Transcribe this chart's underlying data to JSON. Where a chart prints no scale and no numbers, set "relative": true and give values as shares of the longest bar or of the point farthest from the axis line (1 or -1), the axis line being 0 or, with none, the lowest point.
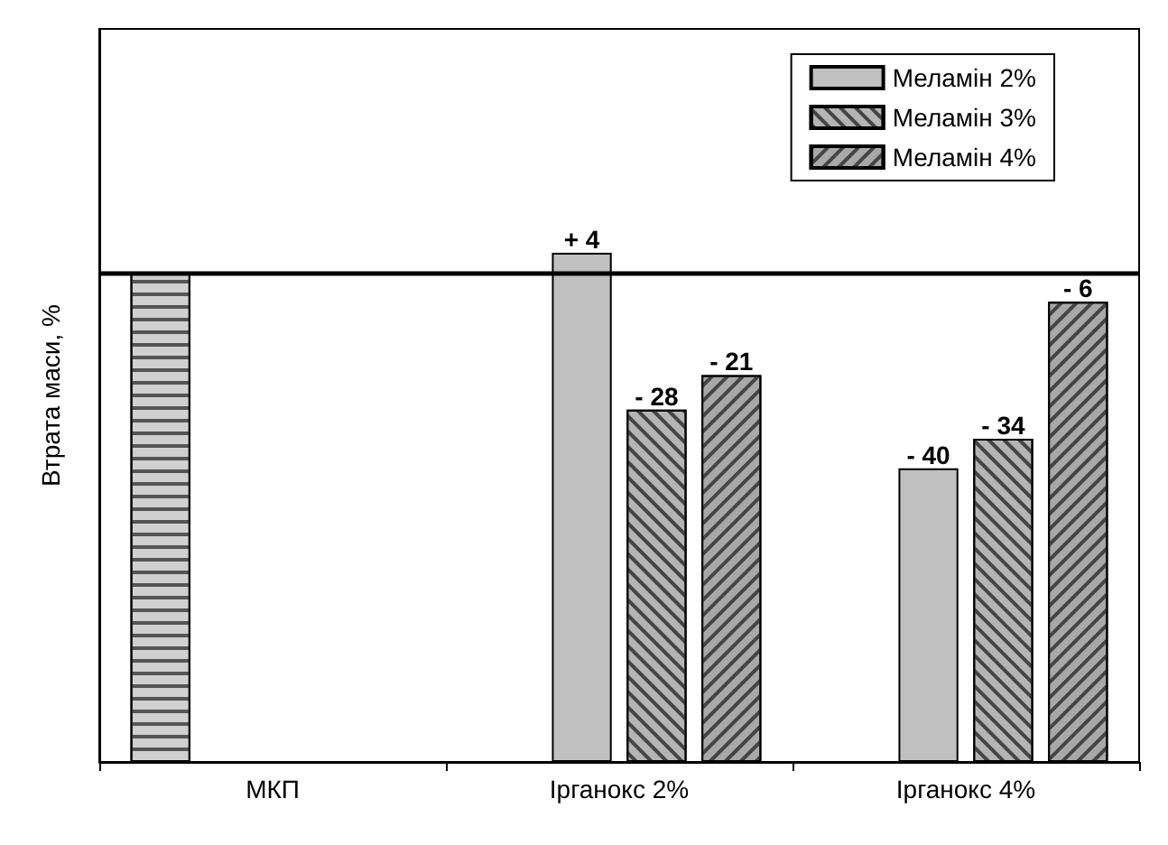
{
  "chart_data": {
    "type": "bar",
    "ylabel": "Втрата маси, %",
    "relative": true,
    "categories": [
      "МКП",
      "Ірганокс 2%",
      "Ірганокс 4%"
    ],
    "series": [
      {
        "color": "#d0d0d0",
        "values": [
          0.9615,
          null,
          null
        ]
      },
      {
        "name": "Меламін 2%",
        "color": "#c0c0c0",
        "values": [
          null,
          1,
          0.577
        ]
      },
      {
        "name": "Меламін 3%",
        "color": "#b4b4b4",
        "values": [
          null,
          0.692,
          0.635
        ]
      },
      {
        "name": "Меламін 4%",
        "color": "#a8a8a8",
        "values": [
          null,
          0.76,
          0.904
        ]
      }
    ],
    "annotations": [
      {
        "text": "+ 4",
        "y": 1
      },
      {
        "text": "- 28",
        "y": 0.692
      },
      {
        "text": "- 21",
        "y": 0.76
      },
      {
        "text": "- 40",
        "y": 0.577
      },
      {
        "text": "- 34",
        "y": 0.635
      },
      {
        "text": "- 6",
        "y": 0.904
      }
    ],
    "ref_lines": [
      {
        "axis": "y",
        "value": 0.9615,
        "color": "#000000"
      }
    ],
    "legend": "top right",
    "grid": false
  }
}
